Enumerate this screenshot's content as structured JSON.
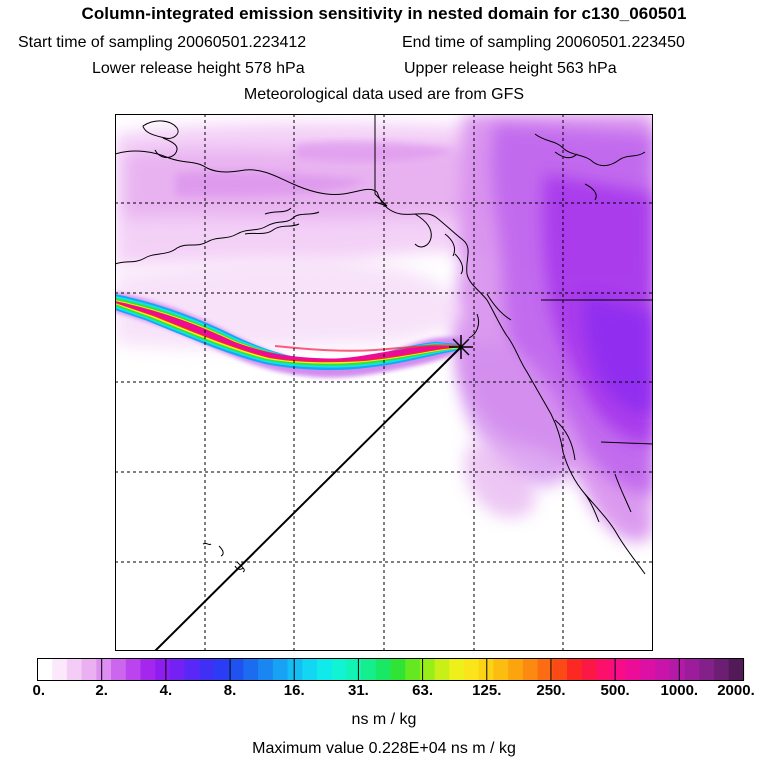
{
  "title": "Column-integrated emission sensitivity in nested domain for c130_060501",
  "sampling": {
    "start": "Start time of sampling 20060501.223412",
    "end": "End time of sampling 20060501.223450"
  },
  "release": {
    "lower": "Lower release height  578 hPa",
    "upper": "Upper release height  563 hPa"
  },
  "met_source": "Meteorological data used are from GFS",
  "colorbar": {
    "tick_labels": [
      "0.",
      "2.",
      "4.",
      "8.",
      "16.",
      "31.",
      "63.",
      "125.",
      "250.",
      "500.",
      "1000.",
      "2000."
    ],
    "colors": [
      "#ffffff",
      "#fbe8fb",
      "#f4cdf6",
      "#eab0f2",
      "#dc8ff0",
      "#cc66ee",
      "#bb44ee",
      "#a526ec",
      "#8e1ef0",
      "#7422f4",
      "#5a28f6",
      "#4030f6",
      "#2c3cf4",
      "#2052f0",
      "#1c6cf0",
      "#1a86f2",
      "#18a2f4",
      "#16bcf4",
      "#12d6f2",
      "#10eaea",
      "#10f4d4",
      "#12f4b4",
      "#14ee8c",
      "#18e864",
      "#30e436",
      "#64e820",
      "#98ee18",
      "#c8f018",
      "#eef01a",
      "#fae41a",
      "#fcd214",
      "#fcbc10",
      "#fca40e",
      "#fc8a10",
      "#fc6c12",
      "#fc4a16",
      "#fc2824",
      "#fc1844",
      "#fc106a",
      "#f80c88",
      "#ec0c98",
      "#dc10a4",
      "#c814a8",
      "#b41aa8",
      "#9c1c9c",
      "#84208a",
      "#6c1e72",
      "#521a56"
    ],
    "units": "ns m / kg"
  },
  "max_value": "Maximum value  0.228E+04 ns m / kg"
}
